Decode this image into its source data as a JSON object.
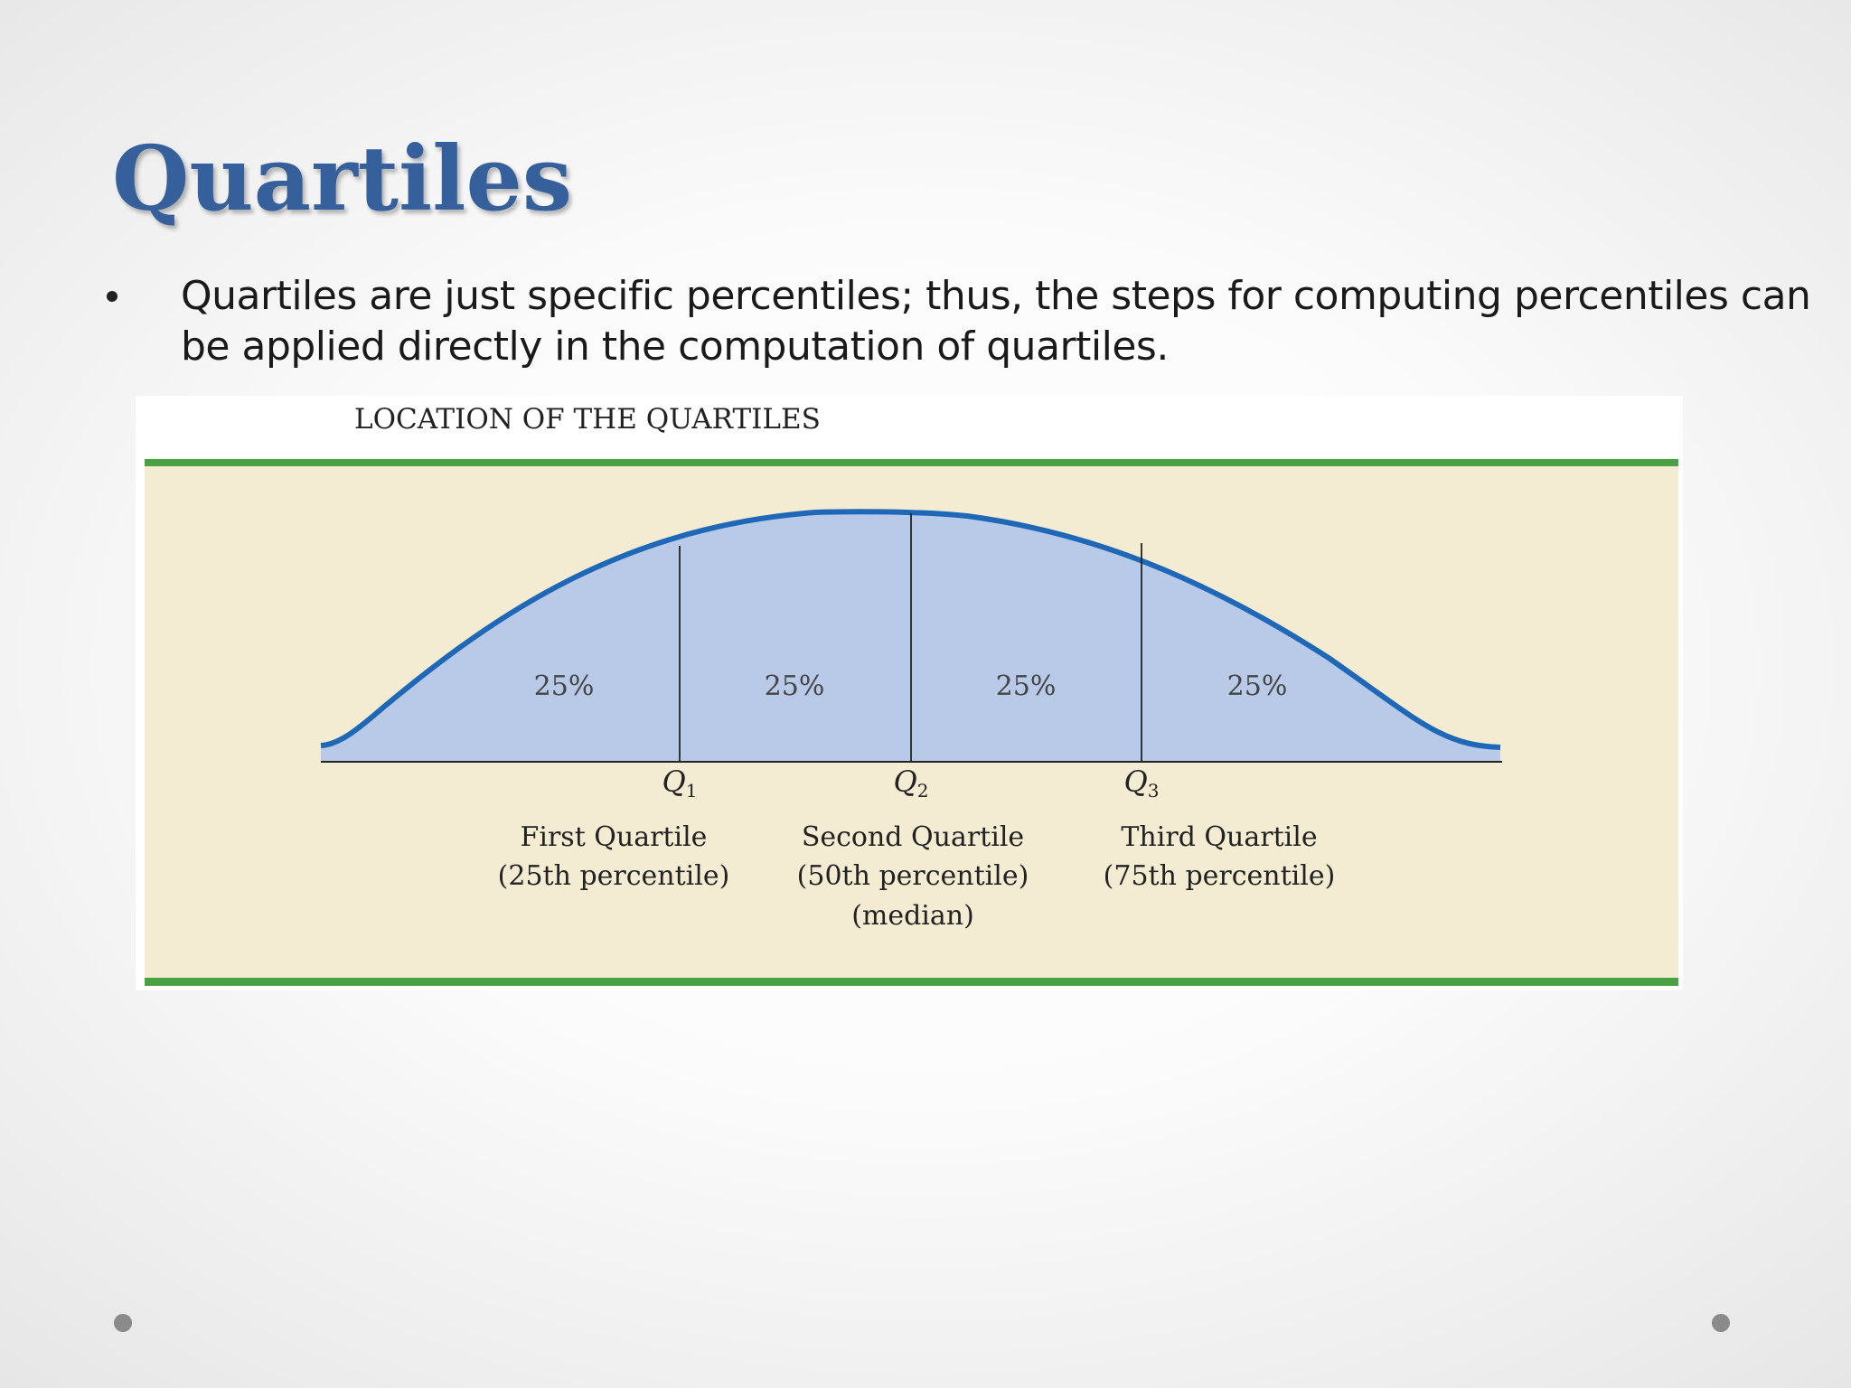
{
  "slide": {
    "title": "Quartiles",
    "bullet": "Quartiles are just specific percentiles; thus, the steps for computing percentiles can be applied directly in the computation of quartiles."
  },
  "figure": {
    "heading": "LOCATION OF THE QUARTILES",
    "region_labels": [
      "25%",
      "25%",
      "25%",
      "25%"
    ],
    "quartiles": [
      {
        "symbol": "Q",
        "sub": "1",
        "name": "First Quartile",
        "detail": "(25th percentile)",
        "extra": ""
      },
      {
        "symbol": "Q",
        "sub": "2",
        "name": "Second Quartile",
        "detail": "(50th percentile)",
        "extra": "(median)"
      },
      {
        "symbol": "Q",
        "sub": "3",
        "name": "Third Quartile",
        "detail": "(75th percentile)",
        "extra": ""
      }
    ],
    "colors": {
      "title": "#35609c",
      "band": "#f4ecd2",
      "rule": "#4ba046",
      "curve": "#1f68b8",
      "fill": "#b9cae8"
    }
  }
}
